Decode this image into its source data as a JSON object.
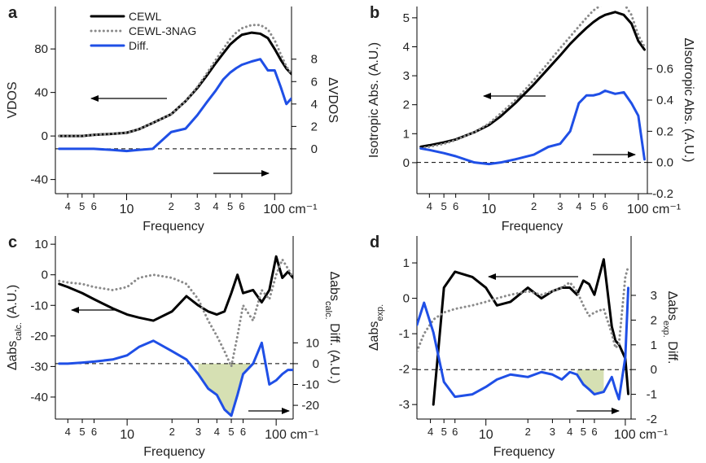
{
  "chart_data": [
    {
      "type": "line",
      "panel": "a",
      "xscale": "log",
      "xlabel": "Frequency",
      "ylabel": "VDOS",
      "y2label": "ΔVDOS",
      "xlim": [
        3.3,
        130
      ],
      "xticks": [
        4,
        5,
        6,
        10,
        {
          "value": 20,
          "label": "2"
        },
        {
          "value": 30,
          "label": "3"
        },
        {
          "value": 40,
          "label": "4"
        },
        {
          "value": 50,
          "label": "5"
        },
        {
          "value": 60,
          "label": "6"
        },
        {
          "value": 100,
          "label": "100 cm⁻¹"
        }
      ],
      "ylim": [
        -53,
        119
      ],
      "yticks": [
        -40,
        0,
        40,
        80
      ],
      "y2lim": [
        -4,
        12.7
      ],
      "y2ticks": [
        0,
        2,
        4,
        6,
        8
      ],
      "legend": "upper left",
      "zero_line": true,
      "x": [
        3.5,
        4,
        5,
        6,
        8,
        10,
        12,
        15,
        20,
        25,
        30,
        35,
        40,
        45,
        50,
        55,
        60,
        70,
        80,
        90,
        100,
        110,
        120,
        130
      ],
      "series": [
        {
          "name": "CEWL",
          "color": "#000000",
          "style": "solid",
          "values": [
            0,
            0,
            0,
            1,
            2,
            3,
            6,
            12,
            20,
            32,
            44,
            56,
            67,
            76,
            84,
            89,
            93,
            95,
            94,
            90,
            80,
            70,
            62,
            57
          ]
        },
        {
          "name": "CEWL-3NAG",
          "color": "#8a8a8a",
          "style": "dotted",
          "values": [
            0,
            0,
            0,
            1,
            2,
            3,
            6,
            12,
            20,
            32,
            45,
            58,
            70,
            80,
            89,
            95,
            99,
            102,
            102,
            98,
            88,
            75,
            64,
            57
          ]
        },
        {
          "name": "Diff.",
          "color": "#1f4fe6",
          "style": "solid",
          "axis": "y2",
          "values": [
            0,
            0,
            0,
            0,
            -0.1,
            -0.2,
            -0.1,
            0,
            1.5,
            1.8,
            3,
            4.2,
            5.2,
            6.2,
            6.8,
            7.2,
            7.5,
            7.8,
            8,
            7,
            7,
            5.5,
            4,
            4.5
          ]
        }
      ]
    },
    {
      "type": "line",
      "panel": "b",
      "xscale": "log",
      "xlabel": "Frequency",
      "ylabel": "Isotropic Abs. (A.U.)",
      "y2label": "ΔIsotropic Abs. (A.U.)",
      "xlim": [
        3.3,
        115
      ],
      "xticks": [
        4,
        5,
        6,
        10,
        {
          "value": 20,
          "label": "2"
        },
        {
          "value": 30,
          "label": "3"
        },
        {
          "value": 40,
          "label": "4"
        },
        {
          "value": 50,
          "label": "5"
        },
        {
          "value": 60,
          "label": "6"
        },
        {
          "value": 100,
          "label": "100 cm⁻¹"
        }
      ],
      "ylim": [
        -1.07,
        5.39
      ],
      "yticks": [
        0,
        1,
        2,
        3,
        4,
        5
      ],
      "y2lim": [
        -0.2,
        1.0
      ],
      "y2ticks": [
        -0.2,
        {
          "value": 0,
          "label": "0.0"
        },
        0.2,
        0.4,
        0.6
      ],
      "zero_line": true,
      "x": [
        3.5,
        4,
        5,
        6,
        8,
        10,
        12,
        15,
        20,
        25,
        30,
        35,
        40,
        45,
        50,
        55,
        60,
        70,
        80,
        90,
        100,
        110
      ],
      "series": [
        {
          "color": "#000000",
          "style": "solid",
          "values": [
            0.55,
            0.6,
            0.7,
            0.8,
            1.05,
            1.3,
            1.6,
            2.05,
            2.7,
            3.25,
            3.7,
            4.1,
            4.4,
            4.65,
            4.85,
            5.0,
            5.1,
            5.2,
            5.1,
            4.8,
            4.2,
            3.9
          ]
        },
        {
          "color": "#8a8a8a",
          "style": "dotted",
          "values": [
            0.5,
            0.55,
            0.65,
            0.78,
            1.05,
            1.35,
            1.7,
            2.15,
            2.85,
            3.45,
            3.95,
            4.35,
            4.7,
            5.0,
            5.25,
            5.4,
            5.5,
            5.6,
            5.5,
            5.1,
            4.4,
            4.0
          ]
        },
        {
          "color": "#1f4fe6",
          "style": "solid",
          "axis": "y2",
          "values": [
            0.09,
            0.08,
            0.06,
            0.04,
            0.0,
            -0.01,
            0.0,
            0.02,
            0.05,
            0.1,
            0.12,
            0.2,
            0.38,
            0.43,
            0.43,
            0.44,
            0.46,
            0.44,
            0.45,
            0.38,
            0.3,
            0.02
          ]
        }
      ]
    },
    {
      "type": "line",
      "panel": "c",
      "xscale": "log",
      "xlabel": "Frequency",
      "ylabel": [
        {
          "text": "Δabs"
        },
        {
          "text": "calc.",
          "sub": true
        },
        {
          "text": " (A.U.)"
        }
      ],
      "y2label": [
        {
          "text": "Δabs"
        },
        {
          "text": "calc.",
          "sub": true
        },
        {
          "text": " Diff. (A.U.)"
        }
      ],
      "xlim": [
        3.3,
        130
      ],
      "xticks": [
        4,
        5,
        6,
        10,
        {
          "value": 20,
          "label": "2"
        },
        {
          "value": 30,
          "label": "3"
        },
        {
          "value": 40,
          "label": "4"
        },
        {
          "value": 50,
          "label": "5"
        },
        {
          "value": 60,
          "label": "6"
        },
        {
          "value": 100,
          "label": "100 cm⁻¹"
        }
      ],
      "ylim": [
        -47.2,
        12.7
      ],
      "yticks": [
        -40,
        -30,
        -20,
        -10,
        0,
        10
      ],
      "y2lim": [
        -26.6,
        61.3
      ],
      "y2ticks": [
        -20,
        -10,
        0,
        10
      ],
      "zero_line": true,
      "shade_range": [
        30,
        70
      ],
      "shade_color": "#d6e0b3",
      "x": [
        3.5,
        4,
        5,
        6,
        8,
        10,
        12,
        15,
        20,
        25,
        30,
        35,
        40,
        45,
        50,
        55,
        60,
        70,
        80,
        90,
        100,
        110,
        120,
        130
      ],
      "series": [
        {
          "color": "#000000",
          "style": "solid",
          "values": [
            -3,
            -4,
            -6,
            -8,
            -11,
            -13,
            -14,
            -15,
            -12,
            -7,
            -10,
            -12,
            -13,
            -12,
            -6,
            0,
            -6,
            -5,
            -9,
            -5,
            6,
            -1,
            1,
            -1
          ]
        },
        {
          "color": "#8a8a8a",
          "style": "dotted",
          "values": [
            -2,
            -2.5,
            -3,
            -4,
            -5,
            -4,
            -1,
            0,
            -1,
            -3,
            -8,
            -15,
            -20,
            -25,
            -30,
            -20,
            -10,
            -15,
            -5,
            -8,
            0,
            5,
            2,
            -1
          ]
        },
        {
          "color": "#1f4fe6",
          "style": "solid",
          "axis": "y2",
          "values": [
            0,
            0,
            0.5,
            1,
            2,
            4,
            8,
            11,
            6,
            2,
            -5,
            -12,
            -15,
            -22,
            -25,
            -15,
            -5,
            0,
            10,
            -10,
            -8,
            -5,
            -3,
            -3
          ]
        }
      ]
    },
    {
      "type": "line",
      "panel": "d",
      "xscale": "log",
      "xlabel": "Frequency",
      "ylabel": [
        {
          "text": "Δabs"
        },
        {
          "text": "exp.",
          "sub": true
        }
      ],
      "y2label": [
        {
          "text": "Δabs"
        },
        {
          "text": "exp.",
          "sub": true
        },
        {
          "text": " Diff."
        }
      ],
      "xlim": [
        3.2,
        110
      ],
      "xticks": [
        4,
        5,
        6,
        10,
        {
          "value": 20,
          "label": "2"
        },
        {
          "value": 30,
          "label": "3"
        },
        {
          "value": 40,
          "label": "4"
        },
        {
          "value": 50,
          "label": "5"
        },
        {
          "value": 60,
          "label": "6"
        },
        {
          "value": 100,
          "label": "100 cm⁻¹"
        }
      ],
      "ylim": [
        -3.41,
        1.76
      ],
      "yticks": [
        -3,
        -2,
        -1,
        0,
        1
      ],
      "y2lim": [
        -2.0,
        5.4
      ],
      "y2ticks": [
        -2,
        -1,
        0,
        1,
        2,
        3
      ],
      "zero_line": true,
      "shade_range": [
        45,
        75
      ],
      "shade_color": "#d6e0b3",
      "x": [
        3.2,
        3.6,
        4.2,
        5,
        6,
        8,
        10,
        12,
        15,
        20,
        25,
        30,
        35,
        40,
        45,
        50,
        55,
        60,
        70,
        80,
        85,
        90,
        100,
        105
      ],
      "series": [
        {
          "color": "#000000",
          "style": "solid",
          "values": [
            null,
            null,
            -3.0,
            0.3,
            0.75,
            0.6,
            0.3,
            -0.2,
            -0.1,
            0.3,
            0,
            0.2,
            0.3,
            0.3,
            0.1,
            0.5,
            0.4,
            0.1,
            1.1,
            -0.8,
            -1.2,
            -1.3,
            -1.7,
            -2.7
          ]
        },
        {
          "color": "#8a8a8a",
          "style": "dotted",
          "values": [
            -1.5,
            -1.0,
            -0.6,
            -0.4,
            -0.3,
            -0.2,
            -0.1,
            0,
            0.1,
            0.2,
            0.1,
            0.2,
            0.3,
            0.45,
            0.2,
            -0.2,
            -0.5,
            -0.4,
            -0.3,
            -1.0,
            -1.4,
            -1.3,
            0.6,
            0.9
          ]
        },
        {
          "color": "#1f4fe6",
          "style": "solid",
          "axis": "y2",
          "values": [
            1.8,
            2.7,
            1.5,
            -0.5,
            -1.1,
            -1.0,
            -0.7,
            -0.4,
            -0.2,
            -0.3,
            -0.1,
            -0.2,
            -0.4,
            -0.1,
            -0.2,
            -0.6,
            -0.8,
            -1.0,
            -0.9,
            -0.3,
            -0.8,
            -1.2,
            0.5,
            3.3
          ]
        }
      ]
    }
  ]
}
